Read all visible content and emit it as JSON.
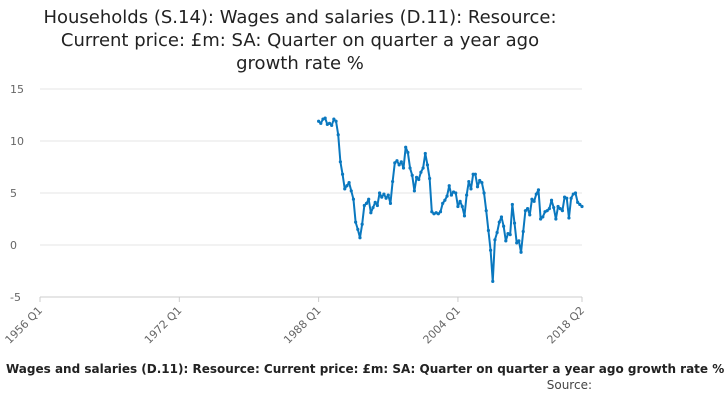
{
  "chart_data": {
    "type": "line",
    "title_lines": [
      "Households (S.14): Wages and salaries (D.11): Resource:",
      "Current price: £m: SA: Quarter on quarter a year ago",
      "growth rate %"
    ],
    "xlabel": "",
    "ylabel": "",
    "x_range": [
      "1956 Q1",
      "2018 Q2"
    ],
    "x_ticks": [
      "1956 Q1",
      "1972 Q1",
      "1988 Q1",
      "2004 Q1",
      "2018 Q2"
    ],
    "y_ticks": [
      15,
      10,
      5,
      0,
      -5
    ],
    "ylim": [
      -5,
      15
    ],
    "grid": true,
    "color": "#0a78bf",
    "series": [
      {
        "name": "Wages and salaries (D.11): Resource: Current price: £m: SA: Quarter on quarter a year ago growth rate %",
        "points": [
          [
            "1988 Q1",
            11.9
          ],
          [
            "1988 Q2",
            11.7
          ],
          [
            "1988 Q3",
            12.1
          ],
          [
            "1988 Q4",
            12.2
          ],
          [
            "1989 Q1",
            11.6
          ],
          [
            "1989 Q2",
            11.7
          ],
          [
            "1989 Q3",
            11.5
          ],
          [
            "1989 Q4",
            12.1
          ],
          [
            "1990 Q1",
            11.9
          ],
          [
            "1990 Q2",
            10.6
          ],
          [
            "1990 Q3",
            8.0
          ],
          [
            "1990 Q4",
            6.8
          ],
          [
            "1991 Q1",
            5.4
          ],
          [
            "1991 Q2",
            5.7
          ],
          [
            "1991 Q3",
            6.0
          ],
          [
            "1991 Q4",
            5.2
          ],
          [
            "1992 Q1",
            4.4
          ],
          [
            "1992 Q2",
            2.2
          ],
          [
            "1992 Q3",
            1.5
          ],
          [
            "1992 Q4",
            0.7
          ],
          [
            "1993 Q1",
            2.0
          ],
          [
            "1993 Q2",
            3.8
          ],
          [
            "1993 Q3",
            4.0
          ],
          [
            "1993 Q4",
            4.4
          ],
          [
            "1994 Q1",
            3.1
          ],
          [
            "1994 Q2",
            3.6
          ],
          [
            "1994 Q3",
            4.1
          ],
          [
            "1994 Q4",
            3.8
          ],
          [
            "1995 Q1",
            5.0
          ],
          [
            "1995 Q2",
            4.6
          ],
          [
            "1995 Q3",
            4.9
          ],
          [
            "1995 Q4",
            4.5
          ],
          [
            "1996 Q1",
            4.8
          ],
          [
            "1996 Q2",
            4.0
          ],
          [
            "1996 Q3",
            6.1
          ],
          [
            "1996 Q4",
            7.9
          ],
          [
            "1997 Q1",
            8.1
          ],
          [
            "1997 Q2",
            7.7
          ],
          [
            "1997 Q3",
            8.0
          ],
          [
            "1997 Q4",
            7.4
          ],
          [
            "1998 Q1",
            9.4
          ],
          [
            "1998 Q2",
            8.9
          ],
          [
            "1998 Q3",
            7.4
          ],
          [
            "1998 Q4",
            6.7
          ],
          [
            "1999 Q1",
            5.2
          ],
          [
            "1999 Q2",
            6.5
          ],
          [
            "1999 Q3",
            6.3
          ],
          [
            "1999 Q4",
            7.0
          ],
          [
            "2000 Q1",
            7.4
          ],
          [
            "2000 Q2",
            8.8
          ],
          [
            "2000 Q3",
            7.7
          ],
          [
            "2000 Q4",
            6.4
          ],
          [
            "2001 Q1",
            3.2
          ],
          [
            "2001 Q2",
            3.0
          ],
          [
            "2001 Q3",
            3.1
          ],
          [
            "2001 Q4",
            3.0
          ],
          [
            "2002 Q1",
            3.2
          ],
          [
            "2002 Q2",
            4.0
          ],
          [
            "2002 Q3",
            4.3
          ],
          [
            "2002 Q4",
            4.7
          ],
          [
            "2003 Q1",
            5.7
          ],
          [
            "2003 Q2",
            4.8
          ],
          [
            "2003 Q3",
            5.1
          ],
          [
            "2003 Q4",
            5.0
          ],
          [
            "2004 Q1",
            3.7
          ],
          [
            "2004 Q2",
            4.2
          ],
          [
            "2004 Q3",
            3.7
          ],
          [
            "2004 Q4",
            2.8
          ],
          [
            "2005 Q1",
            4.8
          ],
          [
            "2005 Q2",
            6.1
          ],
          [
            "2005 Q3",
            5.4
          ],
          [
            "2005 Q4",
            6.8
          ],
          [
            "2006 Q1",
            6.8
          ],
          [
            "2006 Q2",
            5.6
          ],
          [
            "2006 Q3",
            6.2
          ],
          [
            "2006 Q4",
            6.0
          ],
          [
            "2007 Q1",
            5.0
          ],
          [
            "2007 Q2",
            3.3
          ],
          [
            "2007 Q3",
            1.4
          ],
          [
            "2007 Q4",
            -0.5
          ],
          [
            "2008 Q1",
            -3.5
          ],
          [
            "2008 Q2",
            0.5
          ],
          [
            "2008 Q3",
            1.2
          ],
          [
            "2008 Q4",
            2.2
          ],
          [
            "2009 Q1",
            2.7
          ],
          [
            "2009 Q2",
            1.8
          ],
          [
            "2009 Q3",
            0.4
          ],
          [
            "2009 Q4",
            1.1
          ],
          [
            "2010 Q1",
            1.0
          ],
          [
            "2010 Q2",
            3.9
          ],
          [
            "2010 Q3",
            2.1
          ],
          [
            "2010 Q4",
            0.2
          ],
          [
            "2011 Q1",
            0.4
          ],
          [
            "2011 Q2",
            -0.7
          ],
          [
            "2011 Q3",
            1.3
          ],
          [
            "2011 Q4",
            3.3
          ],
          [
            "2012 Q1",
            3.5
          ],
          [
            "2012 Q2",
            2.9
          ],
          [
            "2012 Q3",
            4.4
          ],
          [
            "2012 Q4",
            4.2
          ],
          [
            "2013 Q1",
            4.9
          ],
          [
            "2013 Q2",
            5.3
          ],
          [
            "2013 Q3",
            2.5
          ],
          [
            "2013 Q4",
            2.7
          ],
          [
            "2014 Q1",
            3.2
          ],
          [
            "2014 Q2",
            3.3
          ],
          [
            "2014 Q3",
            3.5
          ],
          [
            "2014 Q4",
            4.3
          ],
          [
            "2015 Q1",
            3.6
          ],
          [
            "2015 Q2",
            2.5
          ],
          [
            "2015 Q3",
            3.7
          ],
          [
            "2015 Q4",
            3.5
          ],
          [
            "2016 Q1",
            3.3
          ],
          [
            "2016 Q2",
            4.6
          ],
          [
            "2016 Q3",
            4.5
          ],
          [
            "2016 Q4",
            2.6
          ],
          [
            "2017 Q1",
            4.5
          ],
          [
            "2017 Q2",
            4.9
          ],
          [
            "2017 Q3",
            5.0
          ],
          [
            "2017 Q4",
            4.1
          ],
          [
            "2018 Q1",
            3.9
          ],
          [
            "2018 Q2",
            3.7
          ]
        ]
      }
    ],
    "source_label": "Source:"
  }
}
